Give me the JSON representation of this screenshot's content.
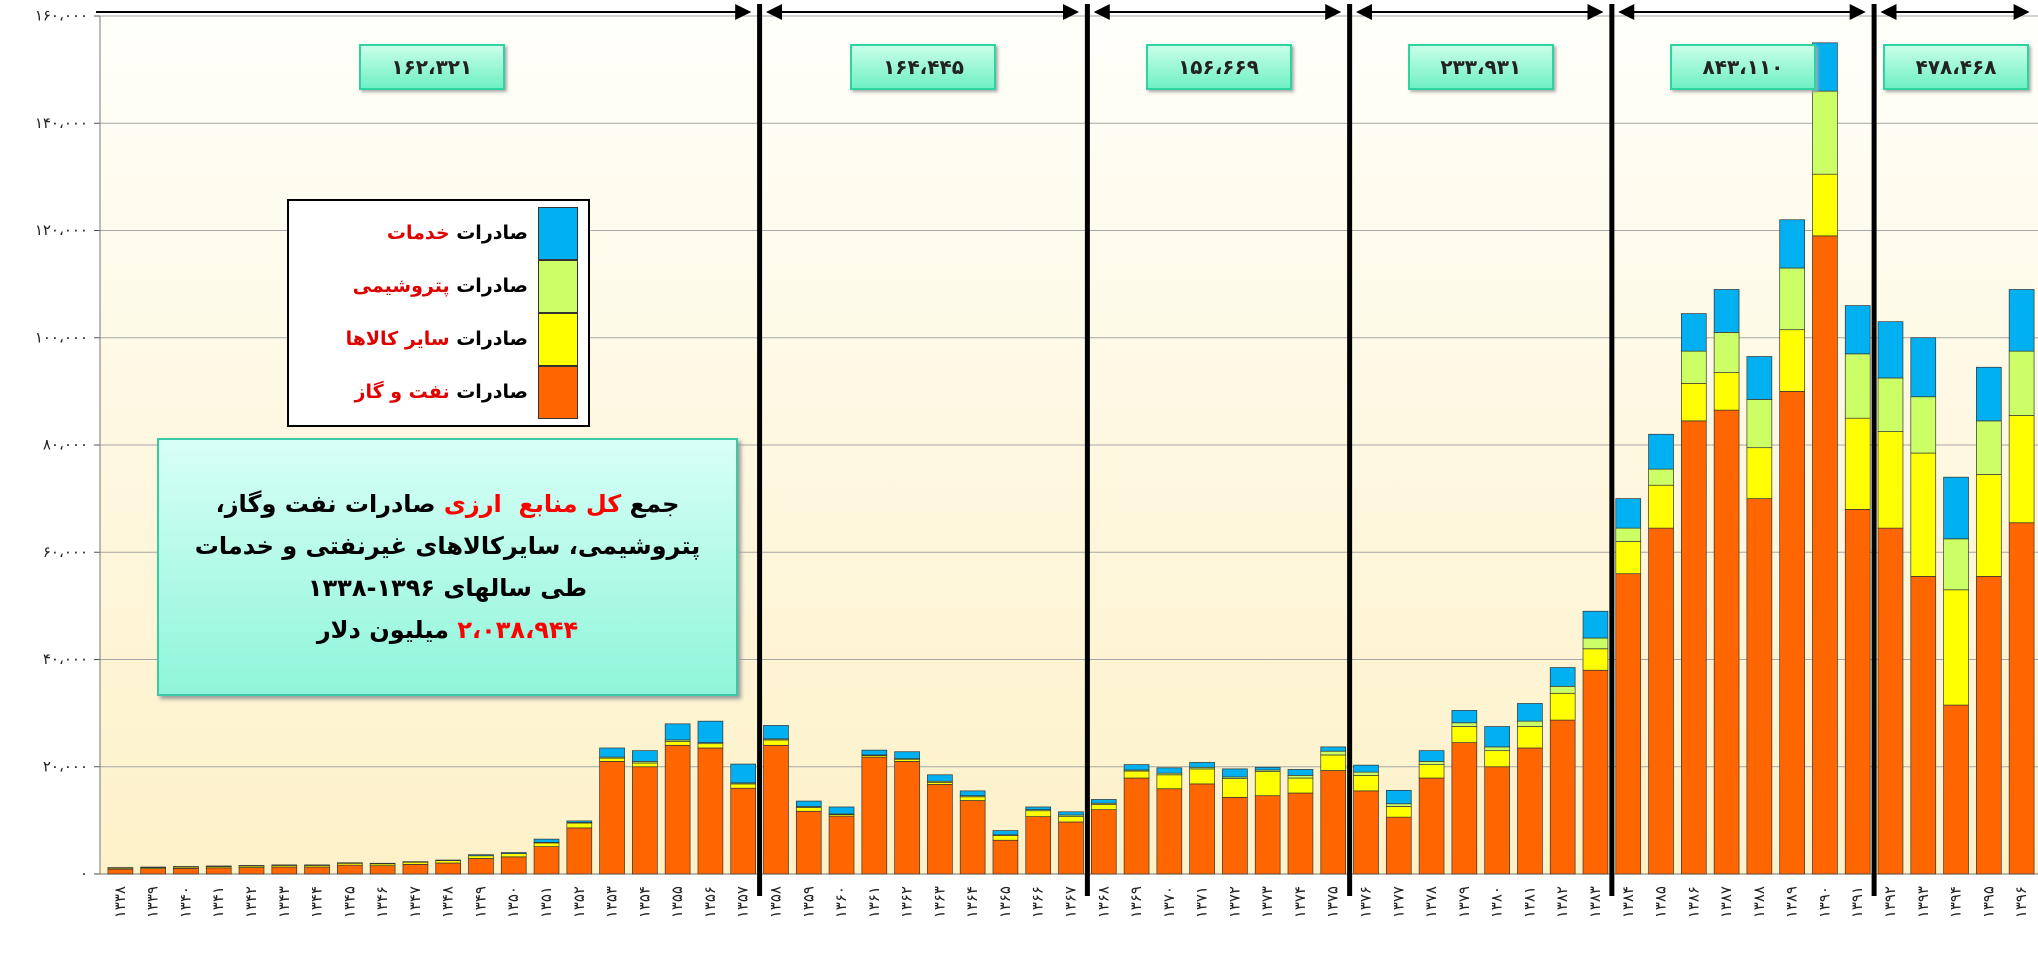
{
  "chart_data": {
    "type": "stacked_bar",
    "categories": [
      "۱۳۳۸",
      "۱۳۳۹",
      "۱۳۴۰",
      "۱۳۴۱",
      "۱۳۴۲",
      "۱۳۴۳",
      "۱۳۴۴",
      "۱۳۴۵",
      "۱۳۴۶",
      "۱۳۴۷",
      "۱۳۴۸",
      "۱۳۴۹",
      "۱۳۵۰",
      "۱۳۵۱",
      "۱۳۵۲",
      "۱۳۵۳",
      "۱۳۵۴",
      "۱۳۵۵",
      "۱۳۵۶",
      "۱۳۵۷",
      "۱۳۵۸",
      "۱۳۵۹",
      "۱۳۶۰",
      "۱۳۶۱",
      "۱۳۶۲",
      "۱۳۶۳",
      "۱۳۶۴",
      "۱۳۶۵",
      "۱۳۶۶",
      "۱۳۶۷",
      "۱۳۶۸",
      "۱۳۶۹",
      "۱۳۷۰",
      "۱۳۷۱",
      "۱۳۷۲",
      "۱۳۷۳",
      "۱۳۷۴",
      "۱۳۷۵",
      "۱۳۷۶",
      "۱۳۷۷",
      "۱۳۷۸",
      "۱۳۷۹",
      "۱۳۸۰",
      "۱۳۸۱",
      "۱۳۸۲",
      "۱۳۸۳",
      "۱۳۸۴",
      "۱۳۸۵",
      "۱۳۸۶",
      "۱۳۸۷",
      "۱۳۸۸",
      "۱۳۸۹",
      "۱۳۹۰",
      "۱۳۹۱",
      "۱۳۹۲",
      "۱۳۹۳",
      "۱۳۹۴",
      "۱۳۹۵",
      "۱۳۹۶"
    ],
    "series": [
      {
        "name": "صادرات نفت و گاز",
        "color": "#ff6600",
        "values": [
          900,
          1000,
          1050,
          1150,
          1200,
          1300,
          1300,
          1650,
          1550,
          1800,
          2050,
          2900,
          3200,
          5100,
          8600,
          21000,
          20000,
          24000,
          23500,
          16000,
          24000,
          11700,
          10800,
          21800,
          21000,
          16700,
          13700,
          6300,
          10700,
          9700,
          12000,
          17900,
          15900,
          16800,
          14300,
          14600,
          15100,
          19300,
          15500,
          10600,
          17900,
          24500,
          20000,
          23500,
          28700,
          38000,
          56000,
          64500,
          84500,
          86500,
          70000,
          90000,
          119000,
          68000,
          64500,
          55500,
          31500,
          55500,
          65500
        ]
      },
      {
        "name": "صادرات سایر کالاها",
        "color": "#ffff00",
        "values": [
          200,
          200,
          250,
          250,
          300,
          300,
          300,
          350,
          350,
          400,
          450,
          500,
          600,
          700,
          900,
          600,
          700,
          700,
          800,
          800,
          1000,
          700,
          300,
          300,
          400,
          400,
          700,
          900,
          1100,
          1000,
          1000,
          1300,
          2600,
          2800,
          3500,
          4500,
          2800,
          2900,
          2900,
          2000,
          2500,
          3000,
          3000,
          4000,
          5000,
          4000,
          6000,
          8000,
          7000,
          7000,
          9500,
          11500,
          11500,
          17000,
          18000,
          23000,
          21500,
          19000,
          20000
        ]
      },
      {
        "name": "صادرات پتروشیمی",
        "color": "#ccff66",
        "values": [
          0,
          0,
          0,
          0,
          0,
          0,
          0,
          0,
          0,
          0,
          0,
          0,
          0,
          100,
          100,
          200,
          300,
          300,
          200,
          200,
          200,
          200,
          100,
          100,
          100,
          200,
          200,
          100,
          200,
          300,
          200,
          200,
          300,
          300,
          300,
          300,
          500,
          700,
          600,
          500,
          600,
          700,
          700,
          1000,
          1300,
          2000,
          2500,
          3000,
          6000,
          7500,
          9000,
          11500,
          15500,
          12000,
          10000,
          10500,
          9500,
          10000,
          12000
        ]
      },
      {
        "name": "صادرات خدمات",
        "color": "#00b0f0",
        "values": [
          100,
          100,
          100,
          100,
          100,
          100,
          100,
          100,
          100,
          100,
          100,
          200,
          200,
          600,
          300,
          1700,
          2000,
          3000,
          4000,
          3500,
          2500,
          1000,
          1300,
          900,
          1300,
          1200,
          900,
          800,
          500,
          600,
          700,
          1000,
          1000,
          900,
          1500,
          500,
          1100,
          800,
          1300,
          2500,
          2000,
          2300,
          3800,
          3300,
          3500,
          5000,
          5500,
          6500,
          7000,
          8000,
          8000,
          9000,
          9000,
          9000,
          10500,
          11000,
          11500,
          10000,
          11500
        ]
      }
    ],
    "ylim": [
      0,
      160000
    ],
    "yticks": [
      {
        "value": 0,
        "label": "۰"
      },
      {
        "value": 20000,
        "label": "۲۰،۰۰۰"
      },
      {
        "value": 40000,
        "label": "۴۰،۰۰۰"
      },
      {
        "value": 60000,
        "label": "۶۰،۰۰۰"
      },
      {
        "value": 80000,
        "label": "۸۰،۰۰۰"
      },
      {
        "value": 100000,
        "label": "۱۰۰،۰۰۰"
      },
      {
        "value": 120000,
        "label": "۱۲۰،۰۰۰"
      },
      {
        "value": 140000,
        "label": "۱۴۰،۰۰۰"
      },
      {
        "value": 160000,
        "label": "۱۶۰،۰۰۰"
      }
    ],
    "grid": true,
    "periods": [
      {
        "label": "۱۶۲،۳۲۱",
        "from": "۱۳۳۸",
        "to": "۱۳۵۷"
      },
      {
        "label": "۱۶۴،۴۴۵",
        "from": "۱۳۵۸",
        "to": "۱۳۶۷"
      },
      {
        "label": "۱۵۶،۶۶۹",
        "from": "۱۳۶۸",
        "to": "۱۳۷۵"
      },
      {
        "label": "۲۳۳،۹۳۱",
        "from": "۱۳۷۶",
        "to": "۱۳۸۳"
      },
      {
        "label": "۸۴۳،۱۱۰",
        "from": "۱۳۸۴",
        "to": "۱۳۹۱"
      },
      {
        "label": "۴۷۸،۴۶۸",
        "from": "۱۳۹۲",
        "to": "۱۳۹۶"
      }
    ],
    "note": [
      [
        {
          "text": "جمع "
        },
        {
          "text": "کل منابع  ارزی",
          "color": "#ff0000"
        },
        {
          "text": " صادرات نفت وگاز،"
        }
      ],
      [
        {
          "text": "پتروشیمی، سایرکالاهای غیرنفتی و خدمات"
        }
      ],
      [
        {
          "text": "طی سالهای ۱۳۹۶-۱۳۳۸"
        }
      ],
      [
        {
          "text": "۲،۰۳۸،۹۴۴",
          "color": "#ff0000"
        },
        {
          "text": " میلیون دلار"
        }
      ]
    ]
  }
}
